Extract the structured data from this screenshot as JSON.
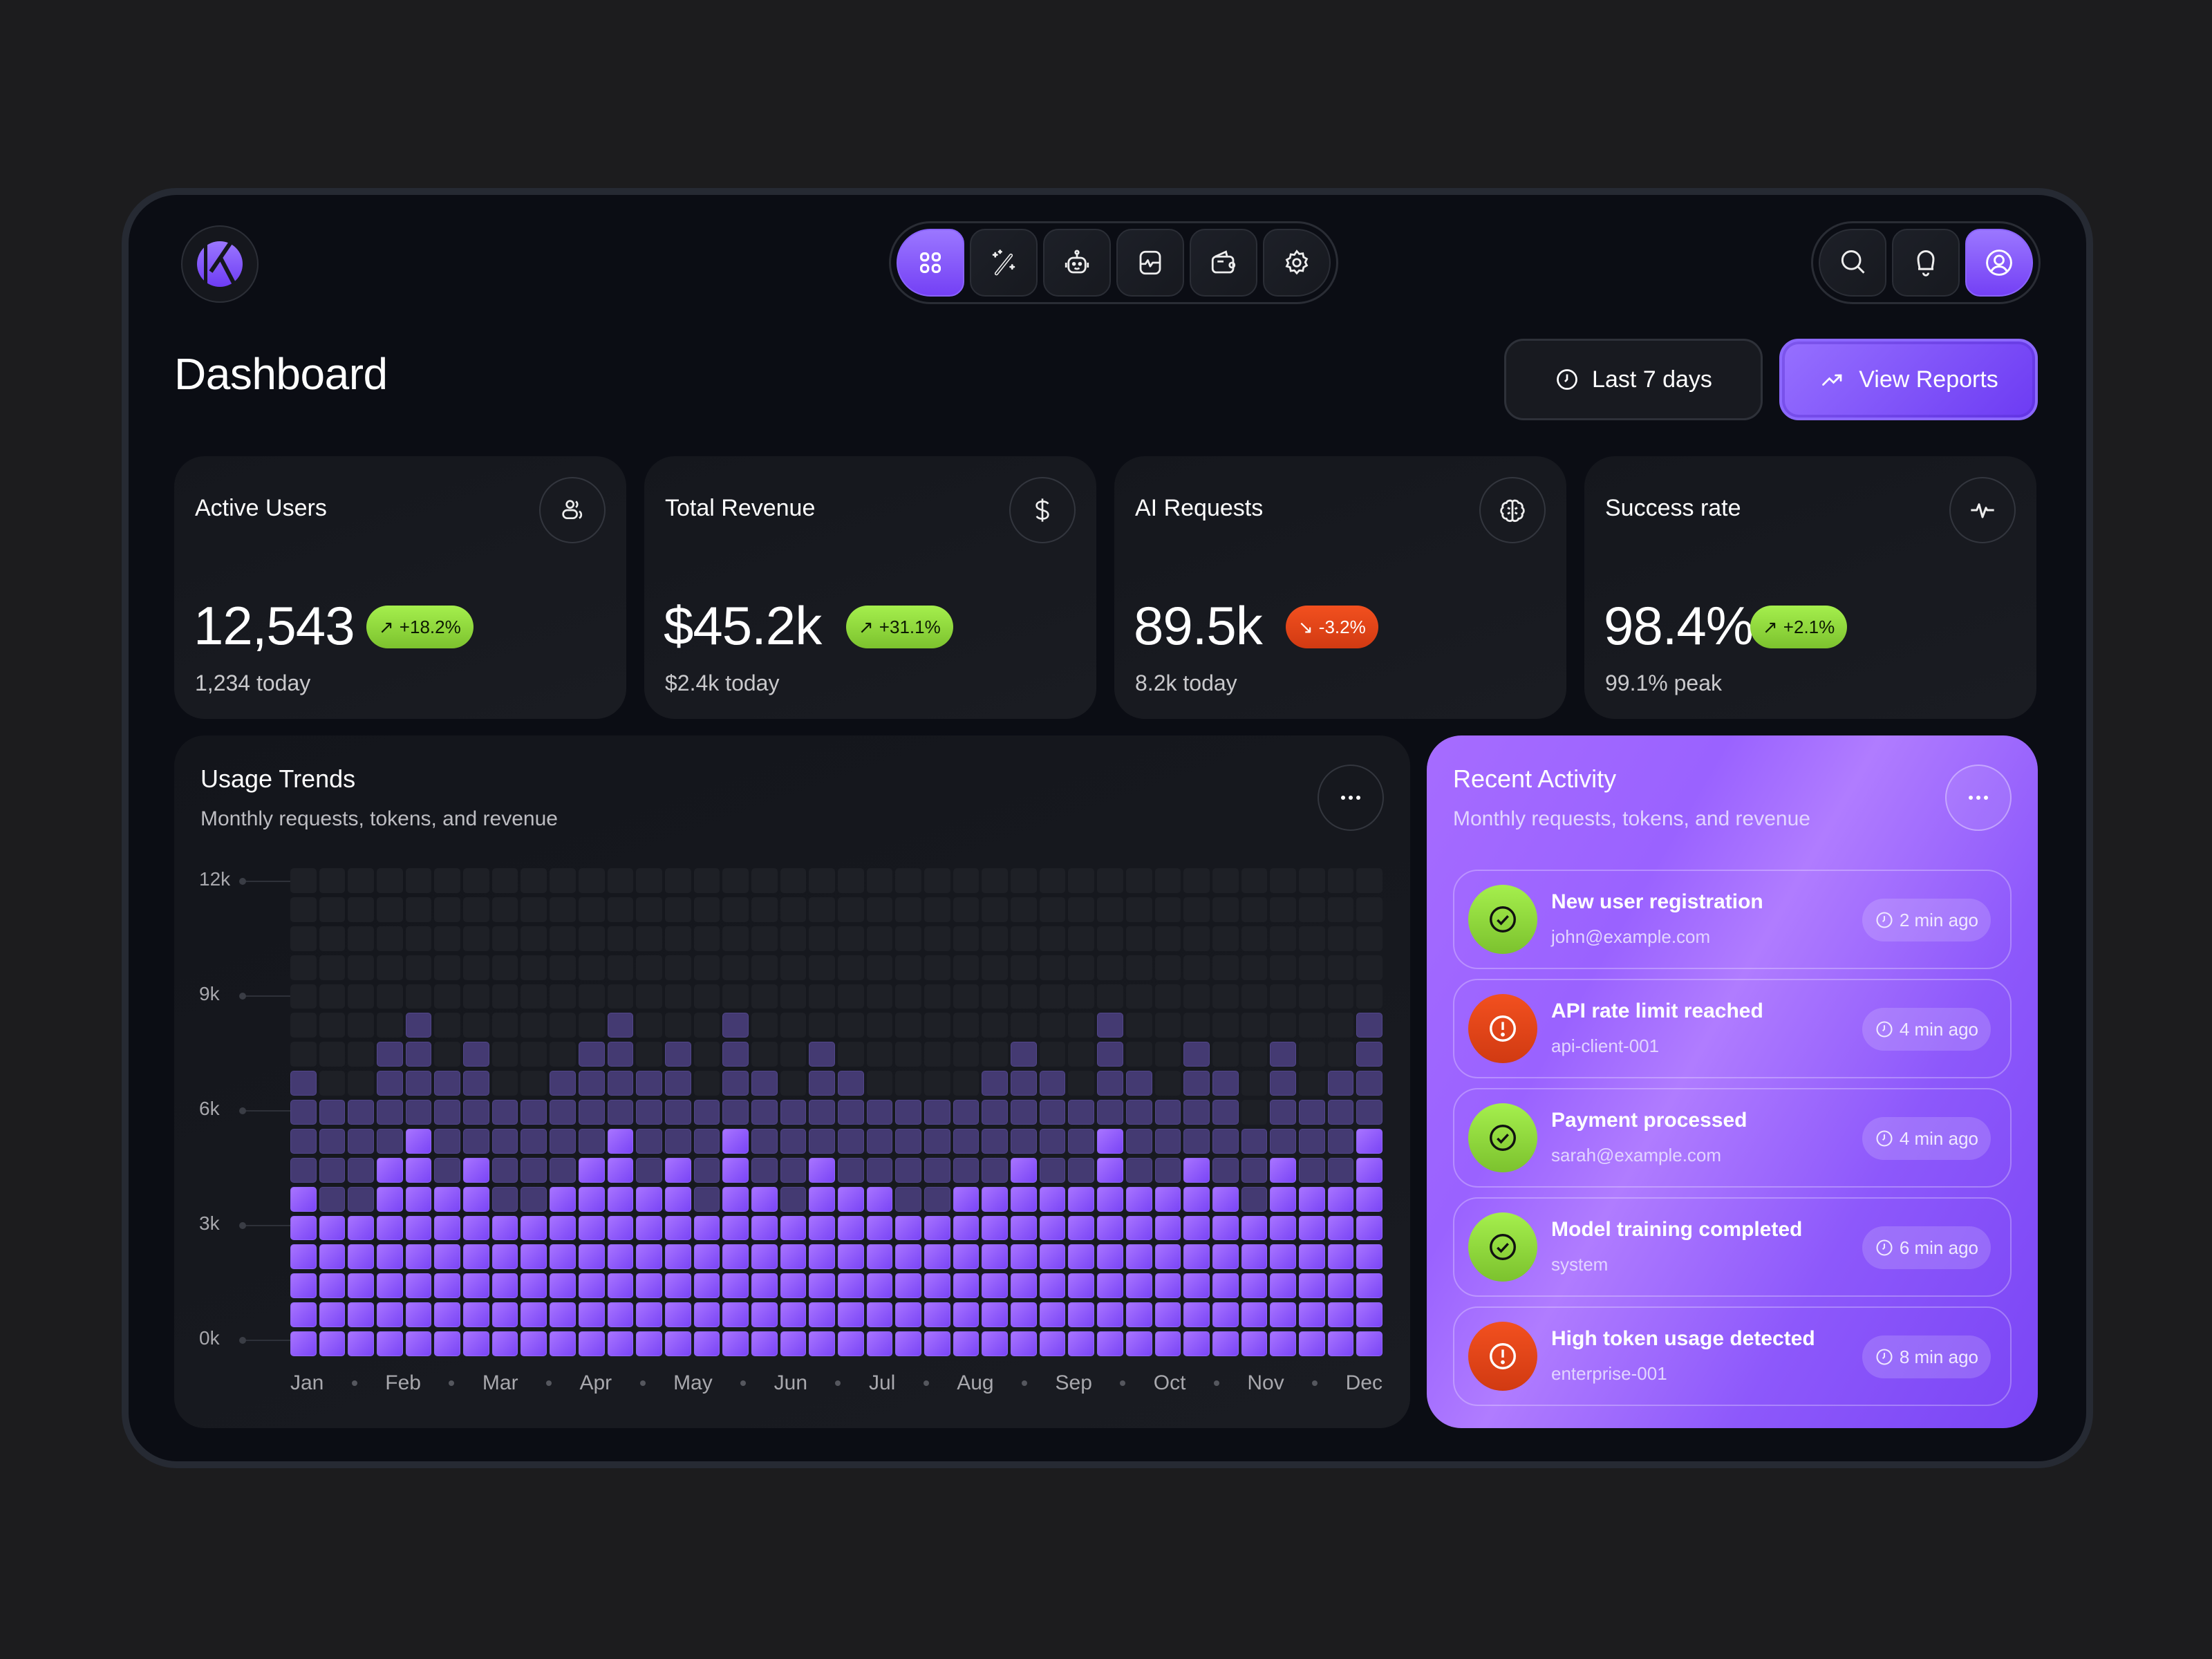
{
  "header": {
    "logo_letter": "K",
    "nav": [
      {
        "icon": "grid-icon",
        "label": "Dashboard",
        "active": true
      },
      {
        "icon": "magic-wand-icon",
        "label": "AI Tools",
        "active": false
      },
      {
        "icon": "robot-icon",
        "label": "Agents",
        "active": false
      },
      {
        "icon": "activity-monitor-icon",
        "label": "Monitoring",
        "active": false
      },
      {
        "icon": "wallet-icon",
        "label": "Billing",
        "active": false
      },
      {
        "icon": "gear-icon",
        "label": "Settings",
        "active": false
      }
    ],
    "actions": [
      {
        "icon": "search-icon"
      },
      {
        "icon": "bell-icon"
      },
      {
        "icon": "user-icon",
        "active": true
      }
    ]
  },
  "page": {
    "title": "Dashboard",
    "date_range_label": "Last 7 days",
    "view_reports_label": "View Reports"
  },
  "stats": [
    {
      "label": "Active Users",
      "icon": "users-icon",
      "value": "12,543",
      "change": "+18.2%",
      "trend": "up",
      "sub": "1,234 today"
    },
    {
      "label": "Total Revenue",
      "icon": "dollar-icon",
      "value": "$45.2k",
      "change": "+31.1%",
      "trend": "up",
      "sub": "$2.4k today"
    },
    {
      "label": "AI Requests",
      "icon": "brain-icon",
      "value": "89.5k",
      "change": "-3.2%",
      "trend": "down",
      "sub": "8.2k today"
    },
    {
      "label": "Success rate",
      "icon": "pulse-icon",
      "value": "98.4%",
      "change": "+2.1%",
      "trend": "up",
      "sub": "99.1% peak"
    }
  ],
  "usage": {
    "title": "Usage Trends",
    "subtitle": "Monthly requests, tokens, and revenue",
    "y_ticks": [
      "12k",
      "9k",
      "6k",
      "3k",
      "0k"
    ],
    "x_ticks": [
      "Jan",
      "Feb",
      "Mar",
      "Apr",
      "May",
      "Jun",
      "Jul",
      "Aug",
      "Sep",
      "Oct",
      "Nov",
      "Dec"
    ]
  },
  "chart_data": {
    "type": "bar",
    "title": "Usage Trends",
    "subtitle": "Monthly requests, tokens, and revenue",
    "xlabel": "",
    "ylabel": "",
    "ylim": [
      0,
      12000
    ],
    "grid_rows": 17,
    "grid_columns": 38,
    "y_ticks": [
      "0k",
      "3k",
      "6k",
      "9k",
      "12k"
    ],
    "categories": [
      "Jan",
      "Feb",
      "Mar",
      "Apr",
      "May",
      "Jun",
      "Jul",
      "Aug",
      "Sep",
      "Oct",
      "Nov",
      "Dec"
    ],
    "series": [
      {
        "name": "primary (bright cells)",
        "values_cells": [
          6,
          5,
          5,
          7,
          8,
          6,
          7,
          5,
          5,
          6,
          7,
          8,
          6,
          7,
          5,
          8,
          6,
          5,
          7,
          6,
          6,
          5,
          5,
          6,
          6,
          7,
          6,
          6,
          8,
          6,
          6,
          7,
          6,
          5,
          7,
          6,
          6,
          8
        ]
      },
      {
        "name": "secondary (total filled cells)",
        "values_cells": [
          10,
          9,
          9,
          11,
          12,
          10,
          11,
          9,
          9,
          10,
          11,
          12,
          10,
          11,
          9,
          12,
          10,
          9,
          11,
          10,
          9,
          9,
          9,
          9,
          10,
          11,
          10,
          9,
          12,
          10,
          9,
          11,
          10,
          8,
          11,
          9,
          10,
          12
        ]
      }
    ]
  },
  "activity": {
    "title": "Recent Activity",
    "subtitle": "Monthly requests, tokens, and revenue",
    "items": [
      {
        "status": "success",
        "icon": "check-circle-icon",
        "title": "New user registration",
        "sub": "john@example.com",
        "time": "2 min ago"
      },
      {
        "status": "error",
        "icon": "alert-circle-icon",
        "title": "API rate limit reached",
        "sub": "api-client-001",
        "time": "4 min ago"
      },
      {
        "status": "success",
        "icon": "check-circle-icon",
        "title": "Payment processed",
        "sub": "sarah@example.com",
        "time": "4 min ago"
      },
      {
        "status": "success",
        "icon": "check-circle-icon",
        "title": "Model training completed",
        "sub": "system",
        "time": "6 min ago"
      },
      {
        "status": "error",
        "icon": "alert-circle-icon",
        "title": "High token usage detected",
        "sub": "enterprise-001",
        "time": "8 min ago"
      }
    ]
  },
  "colors": {
    "accent": "#7c4dff",
    "success": "#8fd93a",
    "danger": "#e4461a",
    "background": "#0b0d14",
    "card": "#17191f"
  }
}
